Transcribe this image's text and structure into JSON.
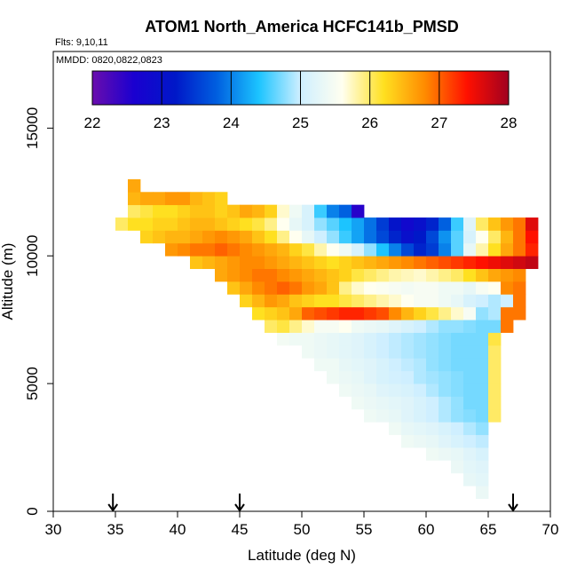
{
  "chart_data": {
    "type": "heatmap",
    "title": "ATOM1 North_America HCFC141b_PMSD",
    "flights_label": "Flts: 9,10,11",
    "dates_label": "MMDD: 0820,0822,0823",
    "xlabel": "Latitude (deg N)",
    "ylabel": "Altitude (m)",
    "xlim": [
      30,
      70
    ],
    "ylim": [
      0,
      18000
    ],
    "x_ticks": [
      30,
      35,
      40,
      45,
      50,
      55,
      60,
      65,
      70
    ],
    "y_ticks": [
      0,
      5000,
      10000,
      15000
    ],
    "colorbar": {
      "min": 22,
      "max": 28,
      "ticks": [
        22,
        23,
        24,
        25,
        26,
        27,
        28
      ],
      "stops": [
        "#6a0dad",
        "#1a00d0",
        "#0018c8",
        "#0060e0",
        "#1cc4ff",
        "#cfefff",
        "#fffff0",
        "#ffe020",
        "#ff8a00",
        "#ff1000",
        "#a00020"
      ]
    },
    "arrows_latitude": [
      34.8,
      45.0,
      67.0
    ],
    "cell_size": {
      "lat": 1.0,
      "alt": 500
    },
    "rows": [
      {
        "alt": 500,
        "lat0": 64,
        "values": [
          25.35
        ]
      },
      {
        "alt": 1000,
        "lat0": 63,
        "values": [
          25.3,
          25.25
        ]
      },
      {
        "alt": 1500,
        "lat0": 62,
        "values": [
          25.35,
          25.25,
          25.2
        ]
      },
      {
        "alt": 2000,
        "lat0": 60,
        "values": [
          25.4,
          25.35,
          25.3,
          25.2,
          25.1
        ]
      },
      {
        "alt": 2500,
        "lat0": 58,
        "values": [
          25.4,
          25.35,
          25.3,
          25.2,
          25.1,
          25.0,
          24.95
        ]
      },
      {
        "alt": 3000,
        "lat0": 57,
        "values": [
          25.4,
          25.3,
          25.25,
          25.2,
          25.1,
          25.0,
          24.9,
          24.8
        ]
      },
      {
        "alt": 3500,
        "lat0": 55,
        "values": [
          25.4,
          25.35,
          25.3,
          25.2,
          25.1,
          25.0,
          24.9,
          24.8,
          24.75,
          24.7,
          26.0
        ]
      },
      {
        "alt": 4000,
        "lat0": 54,
        "values": [
          25.4,
          25.35,
          25.3,
          25.25,
          25.2,
          25.1,
          25.0,
          24.9,
          24.8,
          24.7,
          24.7,
          26.0
        ]
      },
      {
        "alt": 4500,
        "lat0": 53,
        "values": [
          25.4,
          25.35,
          25.3,
          25.2,
          25.15,
          25.1,
          25.0,
          24.9,
          24.8,
          24.75,
          24.7,
          24.7,
          26.0
        ]
      },
      {
        "alt": 5000,
        "lat0": 52,
        "values": [
          25.4,
          25.35,
          25.3,
          25.2,
          25.1,
          25.05,
          25.0,
          24.9,
          24.85,
          24.8,
          24.75,
          24.7,
          24.7,
          26.0
        ]
      },
      {
        "alt": 5500,
        "lat0": 51,
        "values": [
          25.4,
          25.4,
          25.3,
          25.25,
          25.2,
          25.1,
          25.0,
          24.95,
          24.9,
          24.8,
          24.75,
          24.7,
          24.7,
          24.7,
          26.0
        ]
      },
      {
        "alt": 6000,
        "lat0": 50,
        "values": [
          25.4,
          25.35,
          25.3,
          25.25,
          25.2,
          25.1,
          25.0,
          24.95,
          24.9,
          24.85,
          24.8,
          24.75,
          24.7,
          24.7,
          24.7,
          26.0
        ]
      },
      {
        "alt": 6500,
        "lat0": 48,
        "values": [
          25.45,
          25.4,
          25.4,
          25.35,
          25.3,
          25.25,
          25.2,
          25.1,
          25.0,
          24.95,
          24.9,
          24.85,
          24.8,
          24.75,
          24.7,
          24.7,
          24.7,
          26.1
        ]
      },
      {
        "alt": 7000,
        "lat0": 47,
        "values": [
          26.0,
          26.1,
          25.9,
          25.7,
          25.5,
          25.5,
          25.6,
          25.4,
          25.35,
          25.3,
          25.2,
          25.1,
          25.0,
          24.9,
          24.8,
          24.8,
          24.75,
          24.7,
          24.7,
          26.9
        ]
      },
      {
        "alt": 7500,
        "lat0": 46,
        "values": [
          26.2,
          26.3,
          26.4,
          26.6,
          27.0,
          27.1,
          27.2,
          27.3,
          27.3,
          27.2,
          27.1,
          26.8,
          26.5,
          26.3,
          26.1,
          25.9,
          25.7,
          25.5,
          24.8,
          24.9,
          26.9,
          26.9
        ]
      },
      {
        "alt": 8000,
        "lat0": 45,
        "values": [
          26.3,
          26.5,
          26.7,
          26.6,
          26.4,
          26.3,
          26.2,
          26.2,
          26.1,
          26.0,
          25.9,
          25.8,
          25.7,
          25.6,
          25.5,
          25.5,
          25.4,
          25.3,
          25.1,
          25.0,
          24.9,
          25.0,
          26.9
        ]
      },
      {
        "alt": 8500,
        "lat0": 44,
        "values": [
          26.4,
          26.6,
          26.8,
          26.9,
          27.0,
          26.9,
          26.7,
          26.6,
          26.4,
          25.9,
          25.7,
          25.6,
          25.55,
          25.5,
          25.45,
          25.5,
          25.5,
          25.4,
          25.4,
          25.3,
          25.5,
          25.6,
          26.8,
          26.9
        ]
      },
      {
        "alt": 9000,
        "lat0": 43,
        "values": [
          26.6,
          26.7,
          26.8,
          26.9,
          26.9,
          26.8,
          26.7,
          26.6,
          26.5,
          26.4,
          26.3,
          26.1,
          26.0,
          25.9,
          25.8,
          25.75,
          25.7,
          25.8,
          25.9,
          26.0,
          26.2,
          26.4,
          26.6,
          26.7,
          26.8
        ]
      },
      {
        "alt": 9500,
        "lat0": 41,
        "values": [
          26.4,
          26.5,
          26.6,
          26.7,
          26.8,
          26.8,
          26.7,
          26.6,
          26.5,
          26.4,
          26.3,
          26.2,
          26.3,
          26.4,
          26.5,
          26.6,
          26.7,
          26.8,
          26.9,
          27.0,
          27.1,
          27.2,
          27.3,
          27.4,
          27.5,
          27.6,
          27.7,
          27.8
        ]
      },
      {
        "alt": 10000,
        "lat0": 39,
        "values": [
          26.7,
          26.8,
          26.9,
          26.9,
          27.0,
          26.9,
          26.8,
          26.7,
          26.6,
          26.5,
          26.3,
          26.1,
          25.8,
          25.6,
          25.4,
          25.1,
          24.8,
          24.4,
          24.0,
          23.6,
          23.3,
          23.5,
          24.0,
          24.6,
          25.3,
          25.8,
          26.2,
          26.6,
          26.9,
          27.3
        ]
      },
      {
        "alt": 10500,
        "lat0": 37,
        "values": [
          26.3,
          26.4,
          26.5,
          26.5,
          26.6,
          26.7,
          26.8,
          26.7,
          26.6,
          26.4,
          26.2,
          25.9,
          25.6,
          25.3,
          25.0,
          24.8,
          24.5,
          24.2,
          23.9,
          23.6,
          23.3,
          23.0,
          23.2,
          23.6,
          24.1,
          24.6,
          25.1,
          25.6,
          26.0,
          26.5,
          26.9,
          27.4
        ]
      },
      {
        "alt": 11000,
        "lat0": 35,
        "values": [
          26.0,
          26.2,
          26.2,
          26.3,
          26.3,
          26.4,
          26.5,
          26.5,
          26.4,
          26.3,
          26.2,
          26.1,
          25.9,
          25.6,
          25.3,
          25.1,
          24.8,
          24.6,
          24.4,
          24.2,
          23.9,
          23.5,
          23.1,
          22.8,
          23.0,
          23.3,
          23.8,
          24.5,
          25.2,
          26.0,
          26.4,
          26.7,
          26.9,
          27.6
        ]
      },
      {
        "alt": 11500,
        "lat0": 36,
        "values": [
          26.0,
          26.1,
          26.2,
          26.2,
          26.3,
          26.4,
          26.4,
          26.3,
          26.4,
          26.6,
          26.5,
          26.3,
          25.7,
          25.4,
          25.1,
          24.5,
          24.0,
          23.8,
          22.5
        ]
      },
      {
        "alt": 12000,
        "lat0": 36,
        "values": [
          26.5,
          26.6,
          26.6,
          26.7,
          26.7,
          26.5,
          26.4,
          26.3
        ]
      },
      {
        "alt": 12500,
        "lat0": 36,
        "values": [
          26.6
        ]
      }
    ]
  }
}
